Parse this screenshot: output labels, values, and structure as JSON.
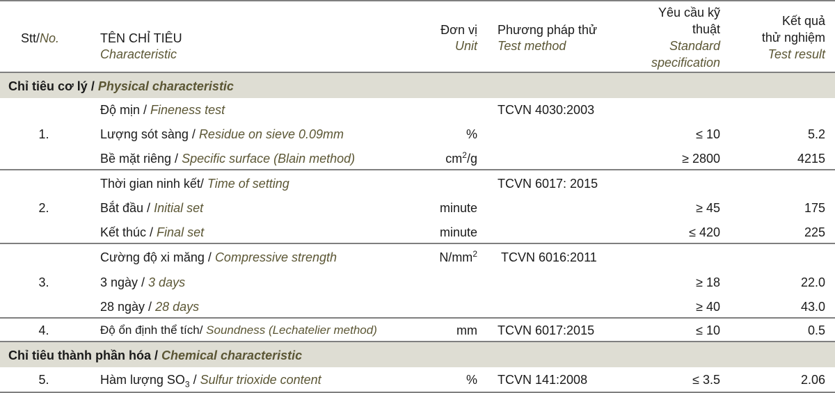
{
  "header": {
    "stt_vi": "Stt/",
    "stt_en": "No.",
    "name_vi": "TÊN CHỈ TIÊU",
    "name_en": "Characteristic",
    "unit_vi": "Đơn vị",
    "unit_en": "Unit",
    "method_vi": "Phương pháp thử",
    "method_en": "Test method",
    "spec_vi_1": "Yêu cầu kỹ",
    "spec_vi_2": "thuật",
    "spec_en_1": "Standard",
    "spec_en_2": "specification",
    "result_vi_1": "Kết quả",
    "result_vi_2": "thử nghiệm",
    "result_en": "Test result"
  },
  "sections": {
    "physical": {
      "vi": "Chỉ tiêu cơ lý / ",
      "en": "Physical characteristic"
    },
    "chemical": {
      "vi": "Chỉ tiêu thành phần hóa / ",
      "en": "Chemical characteristic"
    }
  },
  "groups": {
    "g1": {
      "no": "1.",
      "r1": {
        "vi": "Độ mịn / ",
        "en": "Fineness test",
        "method": "TCVN 4030:2003"
      },
      "r2": {
        "vi": "Lượng sót sàng / ",
        "en": "Residue on sieve 0.09mm",
        "unit": "%",
        "spec": "≤ 10",
        "result": "5.2"
      },
      "r3": {
        "vi": "Bề mặt riêng / ",
        "en": "Specific surface (Blain method)",
        "unit_base": "cm",
        "unit_sup": "2",
        "unit_tail": "/g",
        "spec": "≥ 2800",
        "result": "4215"
      }
    },
    "g2": {
      "no": "2.",
      "r1": {
        "vi": "Thời gian ninh kết/ ",
        "en": "Time of setting",
        "method": "TCVN 6017: 2015"
      },
      "r2": {
        "vi": "Bắt đầu / ",
        "en": "Initial set",
        "unit": "minute",
        "spec": "≥ 45",
        "result": "175"
      },
      "r3": {
        "vi": "Kết thúc / ",
        "en": "Final set",
        "unit": "minute",
        "spec": "≤ 420",
        "result": "225"
      }
    },
    "g3": {
      "no": "3.",
      "r1": {
        "vi": "Cường độ xi măng / ",
        "en": "Compressive strength",
        "unit_base": "N/mm",
        "unit_sup": "2",
        "method": "TCVN 6016:2011"
      },
      "r2": {
        "vi": "3 ngày / ",
        "en": "3 days",
        "spec": "≥ 18",
        "result": "22.0"
      },
      "r3": {
        "vi": "28 ngày / ",
        "en": "28 days",
        "spec": "≥ 40",
        "result": "43.0"
      }
    },
    "g4": {
      "no": "4.",
      "r1": {
        "vi": "Độ ổn định thể tích/ ",
        "en": "Soundness (Lechatelier method)",
        "unit": "mm",
        "method": "TCVN 6017:2015",
        "spec": "≤ 10",
        "result": "0.5"
      }
    },
    "g5": {
      "no": "5.",
      "r1": {
        "vi_a": "Hàm lượng SO",
        "vi_sub": "3",
        "vi_b": " / ",
        "en": "Sulfur trioxide content",
        "unit": "%",
        "method": "TCVN 141:2008",
        "spec": "≤ 3.5",
        "result": "2.06"
      }
    }
  }
}
